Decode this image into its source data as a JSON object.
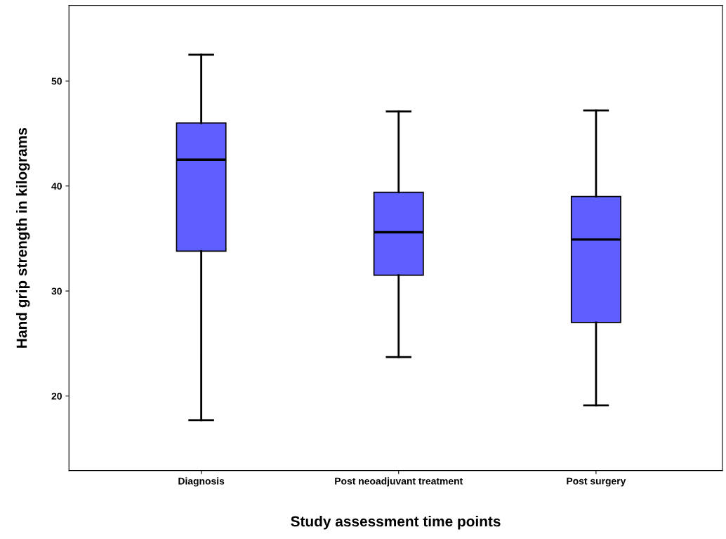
{
  "chart_data": {
    "type": "box",
    "xlabel": "Study assessment time points",
    "ylabel": "Hand grip strength in kilograms",
    "categories": [
      "Diagnosis",
      "Post neoadjuvant treatment",
      "Post surgery"
    ],
    "boxes": [
      {
        "low": 17.7,
        "q1": 33.8,
        "median": 42.5,
        "q3": 46.0,
        "high": 52.5
      },
      {
        "low": 23.7,
        "q1": 31.5,
        "median": 35.6,
        "q3": 39.4,
        "high": 47.1
      },
      {
        "low": 19.1,
        "q1": 27.0,
        "median": 34.9,
        "q3": 39.0,
        "high": 47.2
      }
    ],
    "color": "#5f5fff",
    "ylim": [
      12.9,
      57.2
    ],
    "yticks": [
      20,
      30,
      40,
      50
    ],
    "grid": false,
    "legend": false
  }
}
